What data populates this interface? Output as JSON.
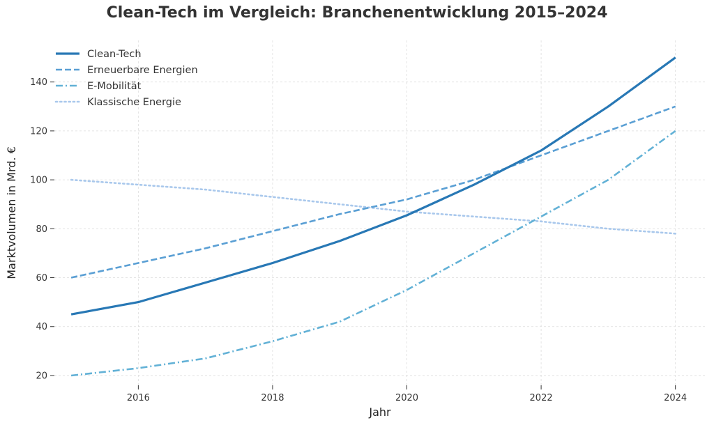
{
  "chart_data": {
    "type": "line",
    "title": "Clean-Tech im Vergleich: Branchenentwicklung 2015–2024",
    "xlabel": "Jahr",
    "ylabel": "Marktvolumen in Mrd. €",
    "x": [
      2015,
      2016,
      2017,
      2018,
      2019,
      2020,
      2021,
      2022,
      2023,
      2024
    ],
    "xticks": [
      2016,
      2018,
      2020,
      2022,
      2024
    ],
    "yticks": [
      20,
      40,
      60,
      80,
      100,
      120,
      140
    ],
    "xlim": [
      2014.75,
      2024.45
    ],
    "ylim": [
      16,
      157
    ],
    "grid": true,
    "legend_position": "top-left",
    "series": [
      {
        "name": "Clean-Tech",
        "values": [
          45,
          50,
          58,
          66,
          75,
          85.5,
          98,
          112,
          130,
          150
        ],
        "color": "#2878b5",
        "style": "solid"
      },
      {
        "name": "Erneuerbare Energien",
        "values": [
          60,
          66,
          72,
          79,
          86,
          92,
          100,
          110,
          120,
          130
        ],
        "color": "#5a9fd4",
        "style": "dashed"
      },
      {
        "name": "E-Mobilität",
        "values": [
          20,
          23,
          27,
          34,
          42,
          55,
          70,
          85,
          100,
          120
        ],
        "color": "#62b1d6",
        "style": "dashdot"
      },
      {
        "name": "Klassische Energie",
        "values": [
          100,
          98,
          96,
          93,
          90,
          87,
          85,
          83,
          80,
          78
        ],
        "color": "#a9c8ec",
        "style": "dotted"
      }
    ]
  }
}
